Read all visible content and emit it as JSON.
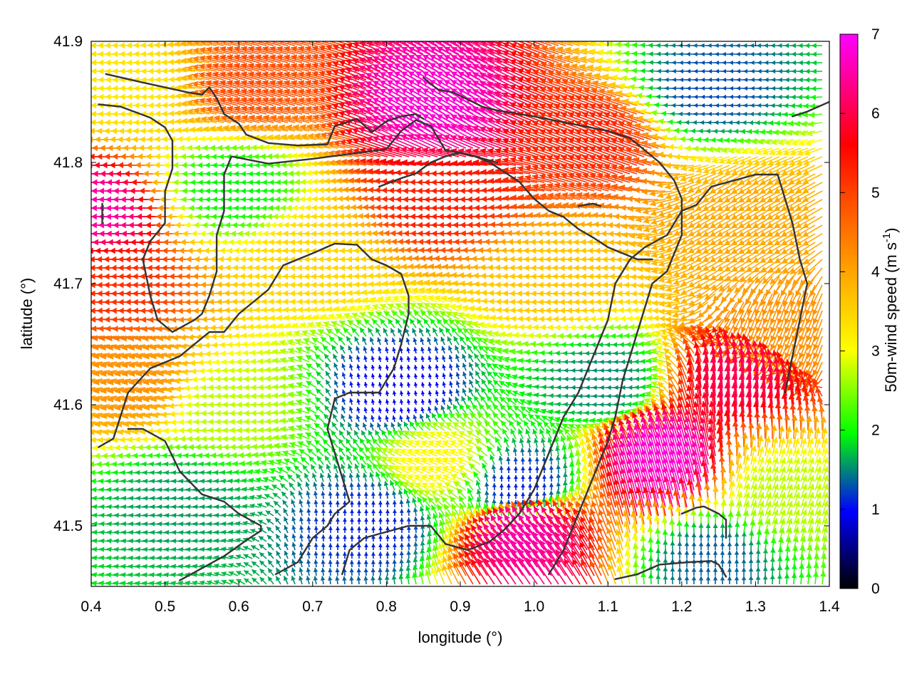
{
  "chart_data": {
    "type": "vector-field",
    "xlabel": "longitude (°)",
    "ylabel": "latitude (°)",
    "colorbar_label": "50m-wind speed (m s-1)",
    "colorbar_label_parts": {
      "main": "50m-wind speed (m s",
      "sup": "-1",
      "close": ")"
    },
    "xlim": [
      0.4,
      1.4
    ],
    "ylim": [
      41.45,
      41.9
    ],
    "xticks": [
      "0.4",
      "0.5",
      "0.6",
      "0.7",
      "0.8",
      "0.9",
      "1.0",
      "1.1",
      "1.2",
      "1.3",
      "1.4"
    ],
    "yticks": [
      "41.5",
      "41.6",
      "41.7",
      "41.8",
      "41.9"
    ],
    "cbar_range": [
      0,
      7
    ],
    "cbar_ticks": [
      "0",
      "1",
      "2",
      "3",
      "4",
      "5",
      "6",
      "7"
    ],
    "colormap": [
      "#000000",
      "#0000ff",
      "#00ff00",
      "#ffff00",
      "#ffa500",
      "#ff0000",
      "#ff00ff"
    ],
    "grid": true,
    "wind_field_regions": [
      {
        "lon": 0.44,
        "lat": 41.76,
        "speed": 6.6,
        "direction_deg": 180
      },
      {
        "lon": 0.46,
        "lat": 41.7,
        "speed": 5.5,
        "direction_deg": 180
      },
      {
        "lon": 0.48,
        "lat": 41.62,
        "speed": 4.8,
        "direction_deg": 190
      },
      {
        "lon": 0.48,
        "lat": 41.86,
        "speed": 3.8,
        "direction_deg": 180
      },
      {
        "lon": 0.63,
        "lat": 41.86,
        "speed": 5.3,
        "direction_deg": 165
      },
      {
        "lon": 0.6,
        "lat": 41.78,
        "speed": 2.3,
        "direction_deg": 180
      },
      {
        "lon": 0.72,
        "lat": 41.72,
        "speed": 4.0,
        "direction_deg": 180
      },
      {
        "lon": 0.9,
        "lat": 41.77,
        "speed": 5.6,
        "direction_deg": 180
      },
      {
        "lon": 0.89,
        "lat": 41.84,
        "speed": 6.8,
        "direction_deg": 150
      },
      {
        "lon": 1.1,
        "lat": 41.82,
        "speed": 5.6,
        "direction_deg": 160
      },
      {
        "lon": 1.05,
        "lat": 41.7,
        "speed": 4.2,
        "direction_deg": 180
      },
      {
        "lon": 1.24,
        "lat": 41.86,
        "speed": 1.5,
        "direction_deg": 180
      },
      {
        "lon": 1.3,
        "lat": 41.76,
        "speed": 4.6,
        "direction_deg": 210
      },
      {
        "lon": 0.6,
        "lat": 41.6,
        "speed": 3.2,
        "direction_deg": 180
      },
      {
        "lon": 0.53,
        "lat": 41.52,
        "speed": 1.9,
        "direction_deg": 175
      },
      {
        "lon": 0.82,
        "lat": 41.61,
        "speed": 1.1,
        "direction_deg": 100
      },
      {
        "lon": 0.88,
        "lat": 41.55,
        "speed": 3.6,
        "direction_deg": 160
      },
      {
        "lon": 0.78,
        "lat": 41.5,
        "speed": 1.3,
        "direction_deg": 90
      },
      {
        "lon": 0.98,
        "lat": 41.53,
        "speed": 1.3,
        "direction_deg": 90
      },
      {
        "lon": 1.0,
        "lat": 41.48,
        "speed": 6.6,
        "direction_deg": 125
      },
      {
        "lon": 1.18,
        "lat": 41.54,
        "speed": 6.8,
        "direction_deg": 105
      },
      {
        "lon": 1.1,
        "lat": 41.62,
        "speed": 1.8,
        "direction_deg": 180
      },
      {
        "lon": 1.28,
        "lat": 41.61,
        "speed": 6.2,
        "direction_deg": 95
      },
      {
        "lon": 1.33,
        "lat": 41.52,
        "speed": 3.2,
        "direction_deg": 70
      },
      {
        "lon": 1.24,
        "lat": 41.47,
        "speed": 1.6,
        "direction_deg": 90
      },
      {
        "lon": 1.35,
        "lat": 41.66,
        "speed": 4.8,
        "direction_deg": 250
      }
    ],
    "coastline_paths": [
      [
        [
          0.42,
          41.873
        ],
        [
          0.47,
          41.866
        ],
        [
          0.53,
          41.858
        ],
        [
          0.55,
          41.856
        ],
        [
          0.56,
          41.862
        ],
        [
          0.57,
          41.853
        ],
        [
          0.58,
          41.84
        ],
        [
          0.6,
          41.832
        ],
        [
          0.61,
          41.823
        ],
        [
          0.64,
          41.816
        ],
        [
          0.68,
          41.814
        ],
        [
          0.72,
          41.815
        ],
        [
          0.73,
          41.83
        ],
        [
          0.76,
          41.836
        ],
        [
          0.78,
          41.825
        ],
        [
          0.8,
          41.834
        ],
        [
          0.82,
          41.838
        ],
        [
          0.84,
          41.84
        ],
        [
          0.85,
          41.836
        ]
      ],
      [
        [
          0.41,
          41.848
        ],
        [
          0.44,
          41.846
        ],
        [
          0.48,
          41.837
        ],
        [
          0.5,
          41.829
        ],
        [
          0.51,
          41.818
        ],
        [
          0.51,
          41.795
        ],
        [
          0.5,
          41.776
        ],
        [
          0.5,
          41.75
        ],
        [
          0.48,
          41.735
        ],
        [
          0.47,
          41.72
        ],
        [
          0.48,
          41.69
        ],
        [
          0.49,
          41.67
        ],
        [
          0.51,
          41.66
        ],
        [
          0.54,
          41.67
        ],
        [
          0.55,
          41.675
        ],
        [
          0.56,
          41.69
        ],
        [
          0.57,
          41.71
        ],
        [
          0.57,
          41.74
        ],
        [
          0.58,
          41.76
        ],
        [
          0.58,
          41.79
        ],
        [
          0.59,
          41.805
        ],
        [
          0.64,
          41.799
        ],
        [
          0.7,
          41.803
        ],
        [
          0.8,
          41.811
        ],
        [
          0.82,
          41.826
        ],
        [
          0.84,
          41.835
        ],
        [
          0.86,
          41.83
        ],
        [
          0.88,
          41.81
        ],
        [
          0.9,
          41.808
        ],
        [
          0.92,
          41.805
        ],
        [
          0.95,
          41.8
        ]
      ],
      [
        [
          0.415,
          41.766
        ],
        [
          0.415,
          41.75
        ]
      ],
      [
        [
          0.41,
          41.565
        ],
        [
          0.43,
          41.572
        ],
        [
          0.45,
          41.61
        ],
        [
          0.48,
          41.63
        ],
        [
          0.52,
          41.64
        ],
        [
          0.56,
          41.66
        ],
        [
          0.58,
          41.66
        ],
        [
          0.6,
          41.675
        ],
        [
          0.62,
          41.685
        ],
        [
          0.64,
          41.695
        ],
        [
          0.66,
          41.715
        ],
        [
          0.7,
          41.725
        ],
        [
          0.73,
          41.733
        ],
        [
          0.76,
          41.732
        ],
        [
          0.78,
          41.72
        ],
        [
          0.8,
          41.715
        ],
        [
          0.82,
          41.708
        ],
        [
          0.83,
          41.69
        ],
        [
          0.83,
          41.675
        ],
        [
          0.82,
          41.65
        ],
        [
          0.81,
          41.63
        ],
        [
          0.79,
          41.61
        ],
        [
          0.77,
          41.61
        ],
        [
          0.75,
          41.61
        ],
        [
          0.73,
          41.605
        ],
        [
          0.72,
          41.58
        ],
        [
          0.73,
          41.56
        ],
        [
          0.74,
          41.54
        ],
        [
          0.75,
          41.52
        ],
        [
          0.73,
          41.51
        ],
        [
          0.72,
          41.5
        ],
        [
          0.7,
          41.49
        ],
        [
          0.68,
          41.47
        ],
        [
          0.65,
          41.46
        ]
      ],
      [
        [
          0.52,
          41.455
        ],
        [
          0.58,
          41.475
        ],
        [
          0.61,
          41.488
        ],
        [
          0.63,
          41.496
        ],
        [
          0.63,
          41.5
        ],
        [
          0.6,
          41.51
        ],
        [
          0.58,
          41.52
        ],
        [
          0.55,
          41.526
        ],
        [
          0.52,
          41.545
        ],
        [
          0.5,
          41.57
        ],
        [
          0.47,
          41.58
        ],
        [
          0.45,
          41.58
        ]
      ],
      [
        [
          0.74,
          41.46
        ],
        [
          0.75,
          41.48
        ],
        [
          0.77,
          41.49
        ],
        [
          0.8,
          41.495
        ],
        [
          0.83,
          41.5
        ],
        [
          0.86,
          41.5
        ],
        [
          0.88,
          41.485
        ],
        [
          0.91,
          41.48
        ],
        [
          0.94,
          41.487
        ],
        [
          0.96,
          41.497
        ],
        [
          0.98,
          41.51
        ],
        [
          1.0,
          41.53
        ],
        [
          1.02,
          41.56
        ],
        [
          1.04,
          41.59
        ],
        [
          1.06,
          41.61
        ],
        [
          1.08,
          41.64
        ],
        [
          1.1,
          41.67
        ],
        [
          1.11,
          41.7
        ],
        [
          1.13,
          41.72
        ],
        [
          1.15,
          41.73
        ],
        [
          1.18,
          41.74
        ],
        [
          1.2,
          41.76
        ]
      ],
      [
        [
          0.85,
          41.87
        ],
        [
          0.87,
          41.86
        ],
        [
          0.89,
          41.858
        ],
        [
          0.91,
          41.852
        ],
        [
          0.93,
          41.846
        ],
        [
          0.95,
          41.843
        ],
        [
          1.0,
          41.838
        ],
        [
          1.05,
          41.832
        ],
        [
          1.1,
          41.826
        ],
        [
          1.13,
          41.82
        ],
        [
          1.15,
          41.81
        ],
        [
          1.17,
          41.8
        ],
        [
          1.19,
          41.785
        ],
        [
          1.2,
          41.77
        ],
        [
          1.2,
          41.74
        ],
        [
          1.19,
          41.725
        ],
        [
          1.18,
          41.71
        ],
        [
          1.16,
          41.7
        ],
        [
          1.15,
          41.68
        ],
        [
          1.14,
          41.66
        ],
        [
          1.13,
          41.64
        ],
        [
          1.12,
          41.62
        ],
        [
          1.11,
          41.59
        ],
        [
          1.1,
          41.57
        ],
        [
          1.08,
          41.54
        ],
        [
          1.06,
          41.51
        ],
        [
          1.04,
          41.48
        ],
        [
          1.02,
          41.46
        ]
      ],
      [
        [
          0.79,
          41.78
        ],
        [
          0.82,
          41.787
        ],
        [
          0.84,
          41.791
        ],
        [
          0.86,
          41.8
        ],
        [
          0.88,
          41.805
        ],
        [
          0.9,
          41.808
        ],
        [
          0.92,
          41.805
        ],
        [
          0.94,
          41.8
        ],
        [
          0.98,
          41.784
        ],
        [
          1.0,
          41.77
        ],
        [
          1.02,
          41.76
        ],
        [
          1.04,
          41.755
        ],
        [
          1.06,
          41.745
        ],
        [
          1.08,
          41.738
        ],
        [
          1.1,
          41.73
        ],
        [
          1.12,
          41.725
        ],
        [
          1.14,
          41.72
        ],
        [
          1.16,
          41.72
        ]
      ],
      [
        [
          1.06,
          41.764
        ],
        [
          1.08,
          41.766
        ],
        [
          1.09,
          41.764
        ]
      ],
      [
        [
          1.11,
          41.456
        ],
        [
          1.14,
          41.46
        ],
        [
          1.17,
          41.468
        ],
        [
          1.21,
          41.47
        ],
        [
          1.24,
          41.471
        ],
        [
          1.25,
          41.468
        ],
        [
          1.26,
          41.458
        ]
      ],
      [
        [
          1.2,
          41.51
        ],
        [
          1.22,
          41.515
        ],
        [
          1.23,
          41.516
        ],
        [
          1.25,
          41.51
        ],
        [
          1.26,
          41.505
        ],
        [
          1.26,
          41.49
        ]
      ],
      [
        [
          1.35,
          41.838
        ],
        [
          1.37,
          41.842
        ],
        [
          1.4,
          41.85
        ]
      ],
      [
        [
          1.2,
          41.76
        ],
        [
          1.22,
          41.765
        ],
        [
          1.24,
          41.78
        ],
        [
          1.3,
          41.79
        ],
        [
          1.33,
          41.79
        ],
        [
          1.34,
          41.77
        ],
        [
          1.35,
          41.75
        ],
        [
          1.36,
          41.72
        ],
        [
          1.37,
          41.7
        ],
        [
          1.36,
          41.67
        ],
        [
          1.35,
          41.64
        ],
        [
          1.34,
          41.61
        ]
      ]
    ]
  }
}
